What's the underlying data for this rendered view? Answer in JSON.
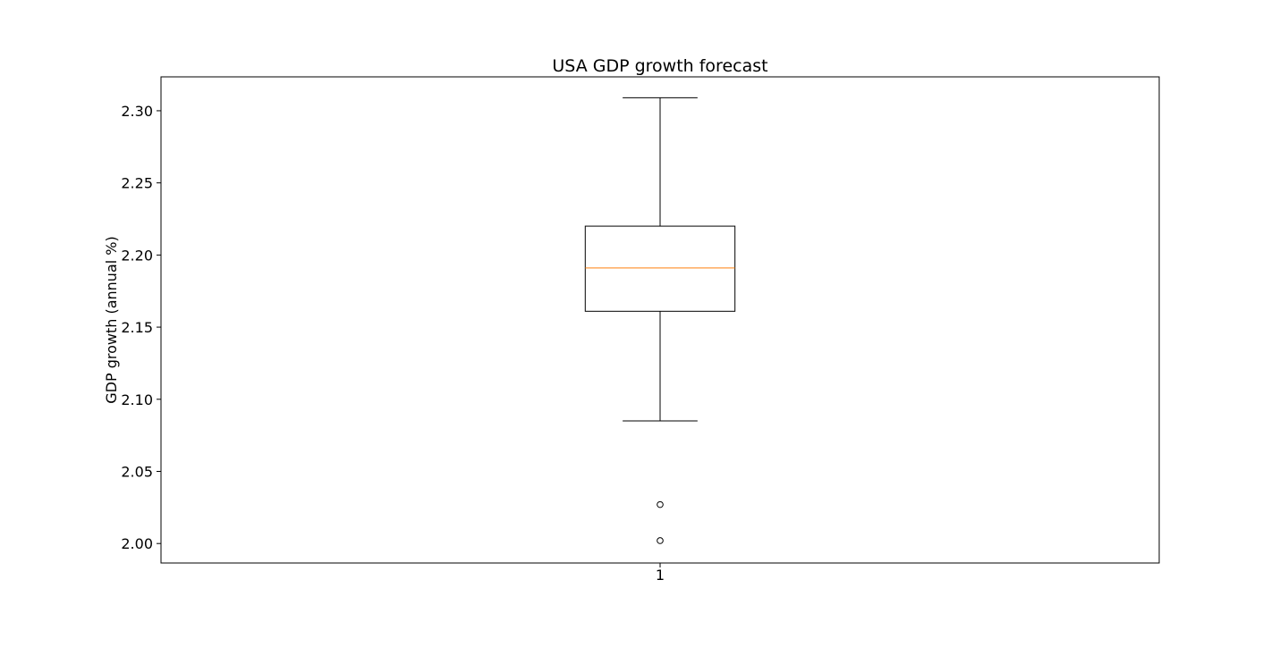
{
  "chart_data": {
    "type": "boxplot",
    "title": "USA GDP growth forecast",
    "xlabel": "",
    "ylabel": "GDP growth (annual %)",
    "categories": [
      "1"
    ],
    "ylim": [
      1.9865,
      2.3235
    ],
    "yticks": [
      2.0,
      2.05,
      2.1,
      2.15,
      2.2,
      2.25,
      2.3
    ],
    "ytick_labels": [
      "2.00",
      "2.05",
      "2.10",
      "2.15",
      "2.20",
      "2.25",
      "2.30"
    ],
    "grid": false,
    "boxes": [
      {
        "category": "1",
        "whisker_low": 2.085,
        "q1": 2.161,
        "median": 2.191,
        "q3": 2.22,
        "whisker_high": 2.309,
        "outliers": [
          2.027,
          2.002
        ]
      }
    ],
    "colors": {
      "box": "#000000",
      "median": "#ff7f0e",
      "outlier": "#000000"
    }
  }
}
